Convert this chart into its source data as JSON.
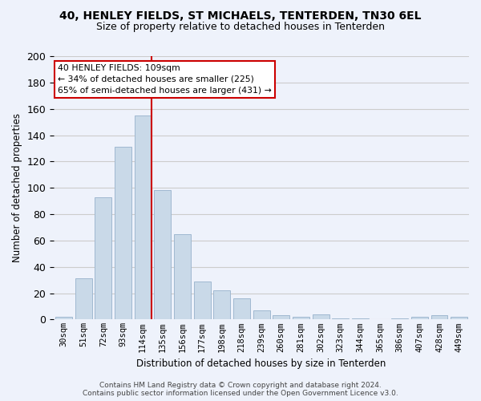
{
  "title": "40, HENLEY FIELDS, ST MICHAELS, TENTERDEN, TN30 6EL",
  "subtitle": "Size of property relative to detached houses in Tenterden",
  "xlabel": "Distribution of detached houses by size in Tenterden",
  "ylabel": "Number of detached properties",
  "categories": [
    "30sqm",
    "51sqm",
    "72sqm",
    "93sqm",
    "114sqm",
    "135sqm",
    "156sqm",
    "177sqm",
    "198sqm",
    "218sqm",
    "239sqm",
    "260sqm",
    "281sqm",
    "302sqm",
    "323sqm",
    "344sqm",
    "365sqm",
    "386sqm",
    "407sqm",
    "428sqm",
    "449sqm"
  ],
  "values": [
    2,
    31,
    93,
    131,
    155,
    98,
    65,
    29,
    22,
    16,
    7,
    3,
    2,
    4,
    1,
    1,
    0,
    1,
    2,
    3,
    2
  ],
  "bar_color": "#c9d9e8",
  "bar_edge_color": "#a0b8d0",
  "red_line_index": 4,
  "annotation_line1": "40 HENLEY FIELDS: 109sqm",
  "annotation_line2": "← 34% of detached houses are smaller (225)",
  "annotation_line3": "65% of semi-detached houses are larger (431) →",
  "annotation_box_facecolor": "#ffffff",
  "annotation_box_edgecolor": "#cc0000",
  "red_line_color": "#cc0000",
  "grid_color": "#cccccc",
  "background_color": "#eef2fb",
  "footer_line1": "Contains HM Land Registry data © Crown copyright and database right 2024.",
  "footer_line2": "Contains public sector information licensed under the Open Government Licence v3.0.",
  "ylim": [
    0,
    200
  ],
  "yticks": [
    0,
    20,
    40,
    60,
    80,
    100,
    120,
    140,
    160,
    180,
    200
  ]
}
